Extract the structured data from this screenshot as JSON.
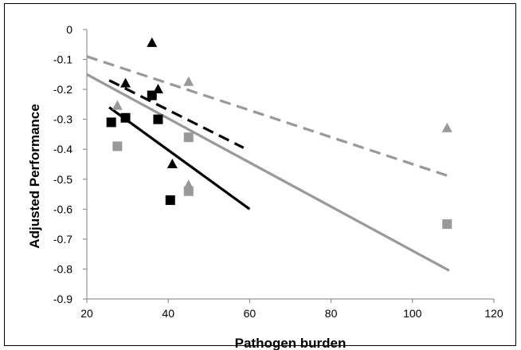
{
  "chart_data": {
    "type": "scatter",
    "title": "",
    "xlabel": "Pathogen burden",
    "ylabel": "Adjusted Performance",
    "xlim": [
      20,
      120
    ],
    "ylim": [
      -0.9,
      0
    ],
    "x_ticks": [
      20,
      40,
      60,
      80,
      100,
      120
    ],
    "x_tick_labels": [
      "20",
      "40",
      "60",
      "80",
      "100",
      "120"
    ],
    "y_ticks": [
      0,
      -0.1,
      -0.2,
      -0.3,
      -0.4,
      -0.5,
      -0.6,
      -0.7,
      -0.8,
      -0.9
    ],
    "y_tick_labels": [
      "0",
      "-0.1",
      "-0.2",
      "-0.3",
      "-0.4",
      "-0.5",
      "-0.6",
      "-0.7",
      "-0.8",
      "-0.9"
    ],
    "grid": false,
    "legend": "none",
    "series": [
      {
        "marker": "triangle",
        "color": "#000000",
        "points": [
          [
            29.5,
            -0.18
          ],
          [
            36,
            -0.045
          ],
          [
            37.5,
            -0.2
          ],
          [
            41,
            -0.45
          ]
        ]
      },
      {
        "marker": "square",
        "color": "#000000",
        "points": [
          [
            26,
            -0.31
          ],
          [
            29.5,
            -0.295
          ],
          [
            36,
            -0.22
          ],
          [
            37.5,
            -0.3
          ],
          [
            40.5,
            -0.57
          ]
        ]
      },
      {
        "marker": "triangle",
        "color": "#999999",
        "points": [
          [
            27.5,
            -0.255
          ],
          [
            45,
            -0.175
          ],
          [
            45,
            -0.52
          ],
          [
            108.5,
            -0.33
          ]
        ]
      },
      {
        "marker": "square",
        "color": "#999999",
        "points": [
          [
            27.5,
            -0.39
          ],
          [
            45,
            -0.36
          ],
          [
            45,
            -0.54
          ],
          [
            108.5,
            -0.65
          ]
        ]
      }
    ],
    "trendlines": [
      {
        "color": "#000000",
        "dash": "dashed",
        "from": [
          25.5,
          -0.17
        ],
        "to": [
          58.5,
          -0.395
        ]
      },
      {
        "color": "#000000",
        "dash": "solid",
        "from": [
          25.5,
          -0.26
        ],
        "to": [
          60,
          -0.6
        ]
      },
      {
        "color": "#999999",
        "dash": "dashed",
        "from": [
          20,
          -0.09
        ],
        "to": [
          109,
          -0.49
        ]
      },
      {
        "color": "#999999",
        "dash": "solid",
        "from": [
          20,
          -0.15
        ],
        "to": [
          109,
          -0.805
        ]
      }
    ]
  }
}
